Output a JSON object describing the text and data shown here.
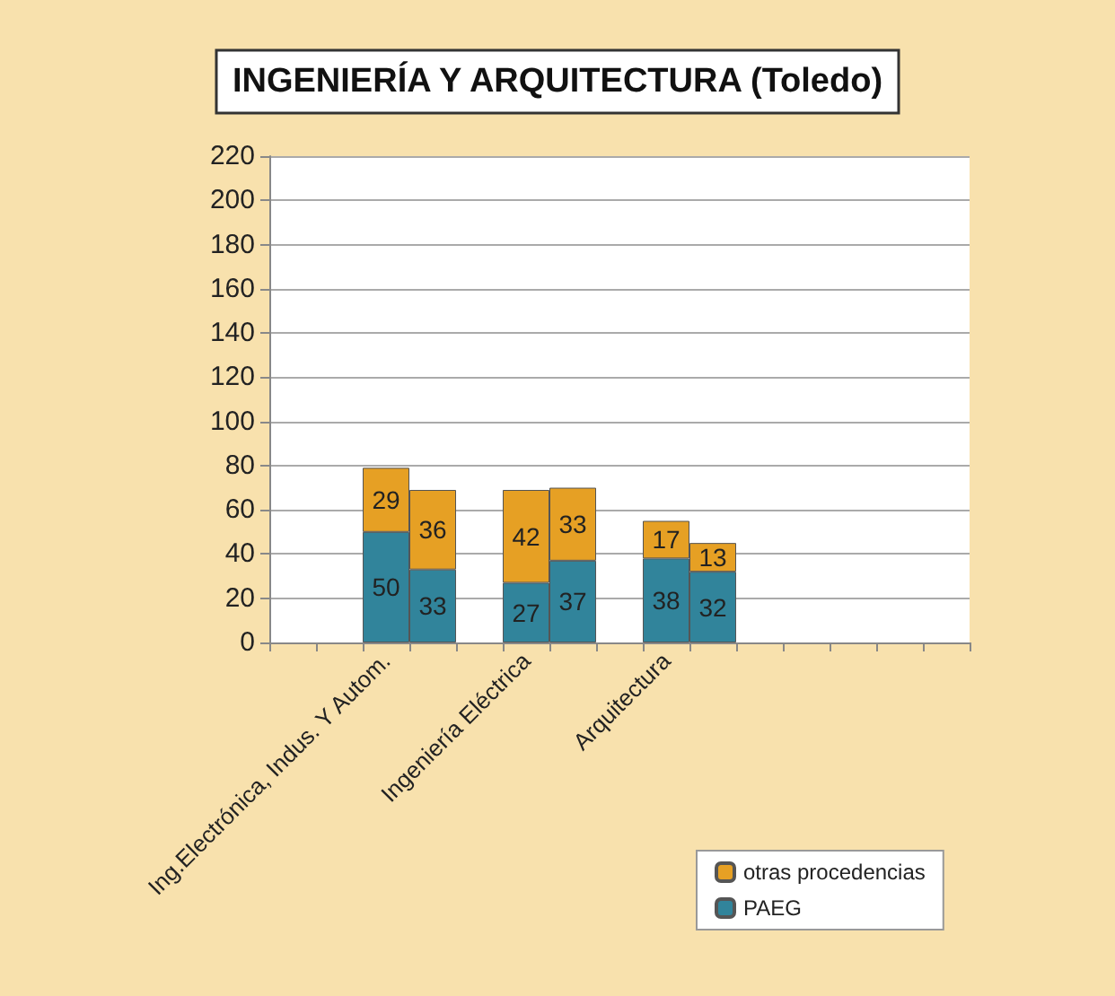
{
  "chart_data": {
    "type": "bar",
    "title": "INGENIERÍA Y ARQUITECTURA (Toledo)",
    "stacked": true,
    "data_labels": true,
    "grid": "y",
    "legend": "bottom right",
    "categories": [
      null,
      null,
      "Ing.Electrónica, Indus. Y Autom.",
      null,
      null,
      "Ingeniería Eléctrica",
      null,
      null,
      "Arquitectura",
      null,
      null,
      null,
      null,
      null,
      null
    ],
    "ylim": [
      0,
      220
    ],
    "yticks": [
      0,
      20,
      40,
      60,
      80,
      100,
      120,
      140,
      160,
      180,
      200,
      220
    ],
    "series": [
      {
        "name": "PAEG",
        "color": "#31849b",
        "values": [
          null,
          null,
          50,
          33,
          null,
          27,
          37,
          null,
          38,
          32,
          null,
          null,
          null,
          null,
          null
        ]
      },
      {
        "name": "otras procedencias",
        "color": "#e6a024",
        "values": [
          null,
          null,
          29,
          36,
          null,
          42,
          33,
          null,
          17,
          13,
          null,
          null,
          null,
          null,
          null
        ]
      }
    ]
  }
}
